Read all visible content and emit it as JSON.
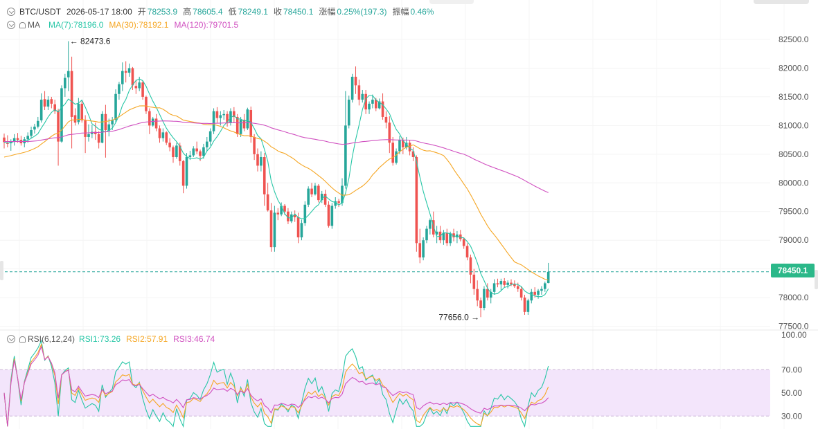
{
  "header": {
    "symbol": "BTC/USDT",
    "datetime": "2026-05-17 18:00",
    "open_label": "开",
    "open_value": "78253.9",
    "high_label": "高",
    "high_value": "78605.4",
    "low_label": "低",
    "low_value": "78249.1",
    "close_label": "收",
    "close_value": "78450.1",
    "change_label": "涨幅",
    "change_value": "0.25%(197.3)",
    "amplitude_label": "振幅",
    "amplitude_value": "0.46%"
  },
  "ma_legend": {
    "name": "MA",
    "items": [
      {
        "text": "MA(7):78196.0",
        "color": "#26c6a6"
      },
      {
        "text": "MA(30):78192.1",
        "color": "#f5a623"
      },
      {
        "text": "MA(120):79701.5",
        "color": "#d050c0"
      }
    ]
  },
  "rsi_legend": {
    "name": "RSI(6,12,24)",
    "items": [
      {
        "text": "RSI1:73.26",
        "color": "#26c6a6"
      },
      {
        "text": "RSI2:57.91",
        "color": "#f5a623"
      },
      {
        "text": "RSI3:46.74",
        "color": "#d050c0"
      }
    ]
  },
  "current_price": "78450.1",
  "annotations": {
    "high_marker": "82473.6",
    "low_marker": "77656.0"
  },
  "colors": {
    "up": "#26a69a",
    "down": "#ef5350",
    "price_line": "#26a69a",
    "rsi_band": "#f3e5fb"
  },
  "chart_data": {
    "type": "candlestick",
    "price_axis_ticks": [
      "82500.0",
      "82000.0",
      "81500.0",
      "81000.0",
      "80500.0",
      "80000.0",
      "79500.0",
      "79000.0",
      "78500.0",
      "78000.0",
      "77500.0"
    ],
    "price_ylim": [
      77350,
      82850
    ],
    "rsi_axis_ticks": [
      "100.00",
      "70.00",
      "50.00",
      "30.00"
    ],
    "rsi_ylim": [
      20,
      100
    ],
    "rsi_band": [
      30,
      70
    ],
    "candles_ohlc": [
      [
        80790,
        80860,
        80600,
        80710
      ],
      [
        80700,
        80830,
        80620,
        80680
      ],
      [
        80690,
        80760,
        80560,
        80720
      ],
      [
        80720,
        80850,
        80650,
        80780
      ],
      [
        80780,
        80870,
        80700,
        80750
      ],
      [
        80750,
        80820,
        80650,
        80690
      ],
      [
        80690,
        80800,
        80620,
        80760
      ],
      [
        80760,
        80880,
        80700,
        80820
      ],
      [
        80820,
        80980,
        80780,
        80920
      ],
      [
        80930,
        81030,
        80860,
        80980
      ],
      [
        80980,
        81150,
        80950,
        81080
      ],
      [
        81090,
        81560,
        81050,
        81450
      ],
      [
        81460,
        81600,
        81270,
        81330
      ],
      [
        81330,
        81510,
        81270,
        81450
      ],
      [
        81460,
        81500,
        81300,
        81380
      ],
      [
        81370,
        81450,
        81200,
        81250
      ],
      [
        81260,
        81290,
        80300,
        80720
      ],
      [
        80720,
        81700,
        80700,
        81650
      ],
      [
        81650,
        81900,
        81500,
        81830
      ],
      [
        81840,
        82470,
        81600,
        81950
      ],
      [
        81950,
        82200,
        80600,
        81150
      ],
      [
        81180,
        81300,
        81000,
        81050
      ],
      [
        81060,
        81480,
        81020,
        81380
      ],
      [
        81380,
        81430,
        81050,
        81090
      ],
      [
        81090,
        81180,
        80520,
        80800
      ],
      [
        80800,
        81020,
        80720,
        80850
      ],
      [
        80850,
        81010,
        80780,
        80890
      ],
      [
        80890,
        81050,
        80750,
        80850
      ],
      [
        80850,
        80900,
        80600,
        80700
      ],
      [
        80700,
        81250,
        80690,
        81200
      ],
      [
        81200,
        81360,
        80440,
        80920
      ],
      [
        80910,
        81120,
        80810,
        81020
      ],
      [
        81020,
        81150,
        80920,
        81100
      ],
      [
        81100,
        81630,
        81050,
        81550
      ],
      [
        81550,
        81760,
        81450,
        81720
      ],
      [
        81720,
        82100,
        81600,
        81950
      ],
      [
        81950,
        82120,
        81750,
        81920
      ],
      [
        81920,
        82080,
        81850,
        82000
      ],
      [
        82000,
        82020,
        81620,
        81700
      ],
      [
        81690,
        81800,
        81550,
        81650
      ],
      [
        81650,
        81850,
        81600,
        81750
      ],
      [
        81750,
        81780,
        81450,
        81500
      ],
      [
        81500,
        81520,
        81200,
        81250
      ],
      [
        81250,
        81300,
        80850,
        81000
      ],
      [
        81000,
        81150,
        80980,
        81120
      ],
      [
        81120,
        81200,
        80900,
        80950
      ],
      [
        80950,
        81000,
        80700,
        80780
      ],
      [
        80780,
        80950,
        80720,
        80880
      ],
      [
        80880,
        80900,
        80660,
        80700
      ],
      [
        80700,
        80780,
        80550,
        80620
      ],
      [
        80620,
        80650,
        80350,
        80450
      ],
      [
        80450,
        80700,
        80420,
        80650
      ],
      [
        80650,
        80700,
        80300,
        80380
      ],
      [
        80380,
        80400,
        79820,
        79950
      ],
      [
        79950,
        80520,
        79900,
        80450
      ],
      [
        80450,
        80560,
        80400,
        80480
      ],
      [
        80480,
        80640,
        80450,
        80600
      ],
      [
        80600,
        80720,
        80500,
        80550
      ],
      [
        80550,
        80580,
        80380,
        80470
      ],
      [
        80470,
        80680,
        80420,
        80620
      ],
      [
        80620,
        80800,
        80550,
        80720
      ],
      [
        80720,
        80950,
        80650,
        80900
      ],
      [
        80900,
        81300,
        80850,
        81250
      ],
      [
        81250,
        81320,
        81050,
        81130
      ],
      [
        81130,
        81250,
        81000,
        81180
      ],
      [
        81180,
        81270,
        81100,
        81200
      ],
      [
        81200,
        81250,
        80980,
        81050
      ],
      [
        81050,
        81300,
        81000,
        81250
      ],
      [
        81250,
        81320,
        81050,
        81150
      ],
      [
        81150,
        81200,
        80800,
        80850
      ],
      [
        80850,
        81150,
        80800,
        81100
      ],
      [
        81100,
        81200,
        80900,
        80950
      ],
      [
        80950,
        81310,
        80920,
        81280
      ],
      [
        81270,
        81330,
        80700,
        80800
      ],
      [
        80800,
        80850,
        80400,
        80500
      ],
      [
        80500,
        80600,
        80200,
        80300
      ],
      [
        80300,
        80550,
        80200,
        80450
      ],
      [
        80450,
        80520,
        79600,
        79800
      ],
      [
        79800,
        80000,
        79500,
        79520
      ],
      [
        79520,
        79650,
        78800,
        78880
      ],
      [
        78880,
        79600,
        78800,
        79480
      ],
      [
        79480,
        79560,
        79350,
        79450
      ],
      [
        79450,
        79660,
        79420,
        79600
      ],
      [
        79600,
        79630,
        79440,
        79500
      ],
      [
        79500,
        79560,
        79280,
        79330
      ],
      [
        79330,
        79500,
        79300,
        79450
      ],
      [
        79450,
        79520,
        79320,
        79400
      ],
      [
        79400,
        79480,
        78950,
        79050
      ],
      [
        79050,
        79360,
        79000,
        79300
      ],
      [
        79300,
        79680,
        79250,
        79620
      ],
      [
        79620,
        79940,
        79580,
        79900
      ],
      [
        79900,
        80000,
        79750,
        79800
      ],
      [
        79800,
        80000,
        79780,
        79950
      ],
      [
        79950,
        79980,
        79660,
        79700
      ],
      [
        79700,
        79860,
        79650,
        79810
      ],
      [
        79810,
        79880,
        79580,
        79620
      ],
      [
        79620,
        79680,
        79220,
        79250
      ],
      [
        79250,
        79650,
        79200,
        79600
      ],
      [
        79600,
        79750,
        79550,
        79680
      ],
      [
        79680,
        79720,
        79580,
        79650
      ],
      [
        79650,
        80080,
        79600,
        79950
      ],
      [
        79950,
        81600,
        79900,
        81000
      ],
      [
        81000,
        81520,
        80950,
        81450
      ],
      [
        81450,
        81900,
        81400,
        81850
      ],
      [
        81850,
        82030,
        81550,
        81700
      ],
      [
        81700,
        81800,
        81350,
        81450
      ],
      [
        81450,
        81620,
        81400,
        81550
      ],
      [
        81550,
        81620,
        81200,
        81280
      ],
      [
        81280,
        81420,
        81200,
        81380
      ],
      [
        81380,
        81540,
        81300,
        81450
      ],
      [
        81450,
        81480,
        81250,
        81300
      ],
      [
        81300,
        81470,
        81280,
        81420
      ],
      [
        81420,
        81560,
        81100,
        81150
      ],
      [
        81150,
        81250,
        80950,
        81050
      ],
      [
        81050,
        81160,
        80520,
        80700
      ],
      [
        80700,
        80800,
        80300,
        80350
      ],
      [
        80350,
        80600,
        80320,
        80550
      ],
      [
        80550,
        80820,
        80500,
        80750
      ],
      [
        80750,
        80790,
        80500,
        80620
      ],
      [
        80620,
        80800,
        80580,
        80700
      ],
      [
        80700,
        80740,
        80480,
        80550
      ],
      [
        80550,
        80620,
        80380,
        80450
      ],
      [
        80450,
        80480,
        78800,
        78950
      ],
      [
        78950,
        79200,
        78600,
        78700
      ],
      [
        78700,
        79050,
        78650,
        79000
      ],
      [
        79000,
        79250,
        78950,
        79200
      ],
      [
        79200,
        79380,
        79100,
        79350
      ],
      [
        79350,
        79500,
        79050,
        79100
      ],
      [
        79100,
        79250,
        78950,
        79150
      ],
      [
        79150,
        79250,
        78950,
        79000
      ],
      [
        79000,
        79180,
        78920,
        79130
      ],
      [
        79130,
        79200,
        78900,
        78950
      ],
      [
        78950,
        79150,
        78900,
        79120
      ],
      [
        79120,
        79200,
        78980,
        79050
      ],
      [
        79050,
        79160,
        78950,
        79100
      ],
      [
        79100,
        79180,
        78980,
        79020
      ],
      [
        79020,
        79050,
        78850,
        78900
      ],
      [
        78900,
        78950,
        78650,
        78700
      ],
      [
        78700,
        78750,
        78250,
        78400
      ],
      [
        78400,
        78500,
        78050,
        78150
      ],
      [
        78150,
        78300,
        77850,
        77950
      ],
      [
        77950,
        78000,
        77660,
        77820
      ],
      [
        77820,
        78200,
        77780,
        78150
      ],
      [
        78150,
        78250,
        77950,
        78000
      ],
      [
        78000,
        78150,
        77900,
        78100
      ],
      [
        78100,
        78320,
        78050,
        78250
      ],
      [
        78250,
        78330,
        78180,
        78230
      ],
      [
        78230,
        78330,
        78130,
        78290
      ],
      [
        78290,
        78340,
        78180,
        78220
      ],
      [
        78220,
        78300,
        78160,
        78260
      ],
      [
        78260,
        78320,
        78200,
        78230
      ],
      [
        78230,
        78300,
        78170,
        78200
      ],
      [
        78200,
        78260,
        78100,
        78150
      ],
      [
        78150,
        78200,
        77950,
        78000
      ],
      [
        78000,
        78050,
        77700,
        77750
      ],
      [
        77750,
        77980,
        77700,
        77950
      ],
      [
        77950,
        78150,
        77900,
        78100
      ],
      [
        78100,
        78180,
        78000,
        78050
      ],
      [
        78050,
        78150,
        77980,
        78120
      ],
      [
        78120,
        78200,
        78050,
        78150
      ],
      [
        78150,
        78280,
        78100,
        78250
      ],
      [
        78253.9,
        78605.4,
        78249.1,
        78450.1
      ]
    ],
    "ma7_note": "MA(7)",
    "ma30_note": "MA(30)",
    "ma120_note": "MA(120)"
  }
}
